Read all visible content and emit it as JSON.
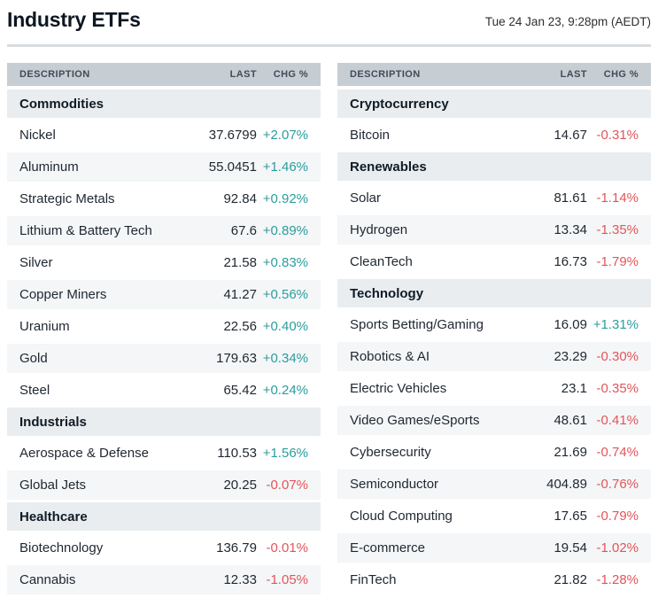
{
  "header": {
    "title": "Industry ETFs",
    "timestamp": "Tue 24 Jan 23, 9:28pm (AEDT)"
  },
  "columns": {
    "description": "DESCRIPTION",
    "last": "LAST",
    "chg": "CHG %"
  },
  "colors": {
    "positive": "#2b9d9d",
    "negative": "#e2555b",
    "header_bg": "#c6cdd3",
    "section_bg": "#e9edef",
    "row_alt_bg": "#f4f6f7",
    "divider": "#d8dcdf"
  },
  "tables": [
    {
      "sections": [
        {
          "title": "Commodities",
          "rows": [
            {
              "description": "Nickel",
              "last": "37.6799",
              "chg": "+2.07%",
              "direction": "up"
            },
            {
              "description": "Aluminum",
              "last": "55.0451",
              "chg": "+1.46%",
              "direction": "up"
            },
            {
              "description": "Strategic Metals",
              "last": "92.84",
              "chg": "+0.92%",
              "direction": "up"
            },
            {
              "description": "Lithium & Battery Tech",
              "last": "67.6",
              "chg": "+0.89%",
              "direction": "up"
            },
            {
              "description": "Silver",
              "last": "21.58",
              "chg": "+0.83%",
              "direction": "up"
            },
            {
              "description": "Copper Miners",
              "last": "41.27",
              "chg": "+0.56%",
              "direction": "up"
            },
            {
              "description": "Uranium",
              "last": "22.56",
              "chg": "+0.40%",
              "direction": "up"
            },
            {
              "description": "Gold",
              "last": "179.63",
              "chg": "+0.34%",
              "direction": "up"
            },
            {
              "description": "Steel",
              "last": "65.42",
              "chg": "+0.24%",
              "direction": "up"
            }
          ]
        },
        {
          "title": "Industrials",
          "rows": [
            {
              "description": "Aerospace & Defense",
              "last": "110.53",
              "chg": "+1.56%",
              "direction": "up"
            },
            {
              "description": "Global Jets",
              "last": "20.25",
              "chg": "-0.07%",
              "direction": "down"
            }
          ]
        },
        {
          "title": "Healthcare",
          "rows": [
            {
              "description": "Biotechnology",
              "last": "136.79",
              "chg": "-0.01%",
              "direction": "down"
            },
            {
              "description": "Cannabis",
              "last": "12.33",
              "chg": "-1.05%",
              "direction": "down"
            }
          ]
        }
      ]
    },
    {
      "sections": [
        {
          "title": "Cryptocurrency",
          "rows": [
            {
              "description": "Bitcoin",
              "last": "14.67",
              "chg": "-0.31%",
              "direction": "down"
            }
          ]
        },
        {
          "title": "Renewables",
          "rows": [
            {
              "description": "Solar",
              "last": "81.61",
              "chg": "-1.14%",
              "direction": "down"
            },
            {
              "description": "Hydrogen",
              "last": "13.34",
              "chg": "-1.35%",
              "direction": "down"
            },
            {
              "description": "CleanTech",
              "last": "16.73",
              "chg": "-1.79%",
              "direction": "down"
            }
          ]
        },
        {
          "title": "Technology",
          "rows": [
            {
              "description": "Sports Betting/Gaming",
              "last": "16.09",
              "chg": "+1.31%",
              "direction": "up"
            },
            {
              "description": "Robotics & AI",
              "last": "23.29",
              "chg": "-0.30%",
              "direction": "down"
            },
            {
              "description": "Electric Vehicles",
              "last": "23.1",
              "chg": "-0.35%",
              "direction": "down"
            },
            {
              "description": "Video Games/eSports",
              "last": "48.61",
              "chg": "-0.41%",
              "direction": "down"
            },
            {
              "description": "Cybersecurity",
              "last": "21.69",
              "chg": "-0.74%",
              "direction": "down"
            },
            {
              "description": "Semiconductor",
              "last": "404.89",
              "chg": "-0.76%",
              "direction": "down"
            },
            {
              "description": "Cloud Computing",
              "last": "17.65",
              "chg": "-0.79%",
              "direction": "down"
            },
            {
              "description": "E-commerce",
              "last": "19.54",
              "chg": "-1.02%",
              "direction": "down"
            },
            {
              "description": "FinTech",
              "last": "21.82",
              "chg": "-1.28%",
              "direction": "down"
            }
          ]
        }
      ]
    }
  ]
}
